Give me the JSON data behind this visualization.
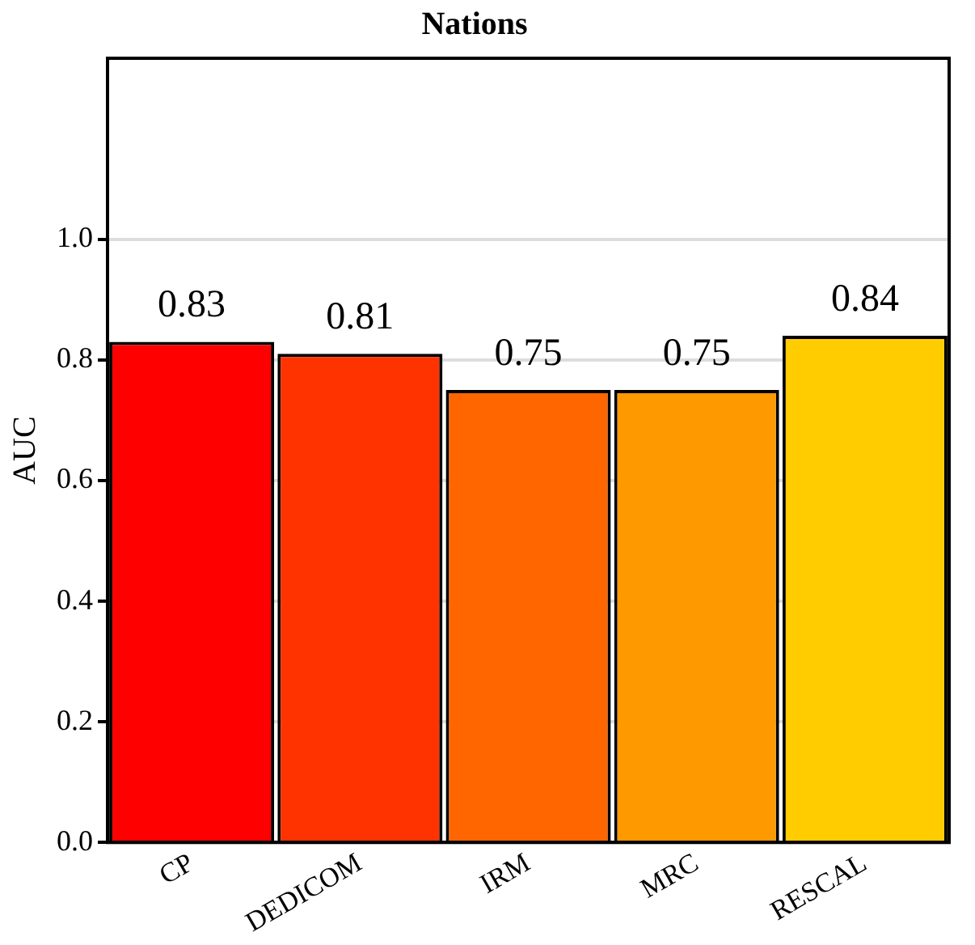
{
  "chart_data": {
    "type": "bar",
    "title": "Nations",
    "ylabel": "AUC",
    "categories": [
      "CP",
      "DEDICOM",
      "IRM",
      "MRC",
      "RESCAL"
    ],
    "values": [
      0.83,
      0.81,
      0.75,
      0.75,
      0.84
    ],
    "colors": [
      "#ff0000",
      "#ff3300",
      "#ff6600",
      "#ff9900",
      "#ffcc00"
    ],
    "ylim": [
      0,
      1.3
    ],
    "yticks": [
      {
        "value": 0,
        "label": "0.0"
      },
      {
        "value": 0.2,
        "label": "0.2"
      },
      {
        "value": 0.4,
        "label": "0.4"
      },
      {
        "value": 0.6,
        "label": "0.6"
      },
      {
        "value": 0.8,
        "label": "0.8"
      },
      {
        "value": 1,
        "label": "1.0"
      }
    ],
    "grid": "y",
    "data_labels": true
  }
}
